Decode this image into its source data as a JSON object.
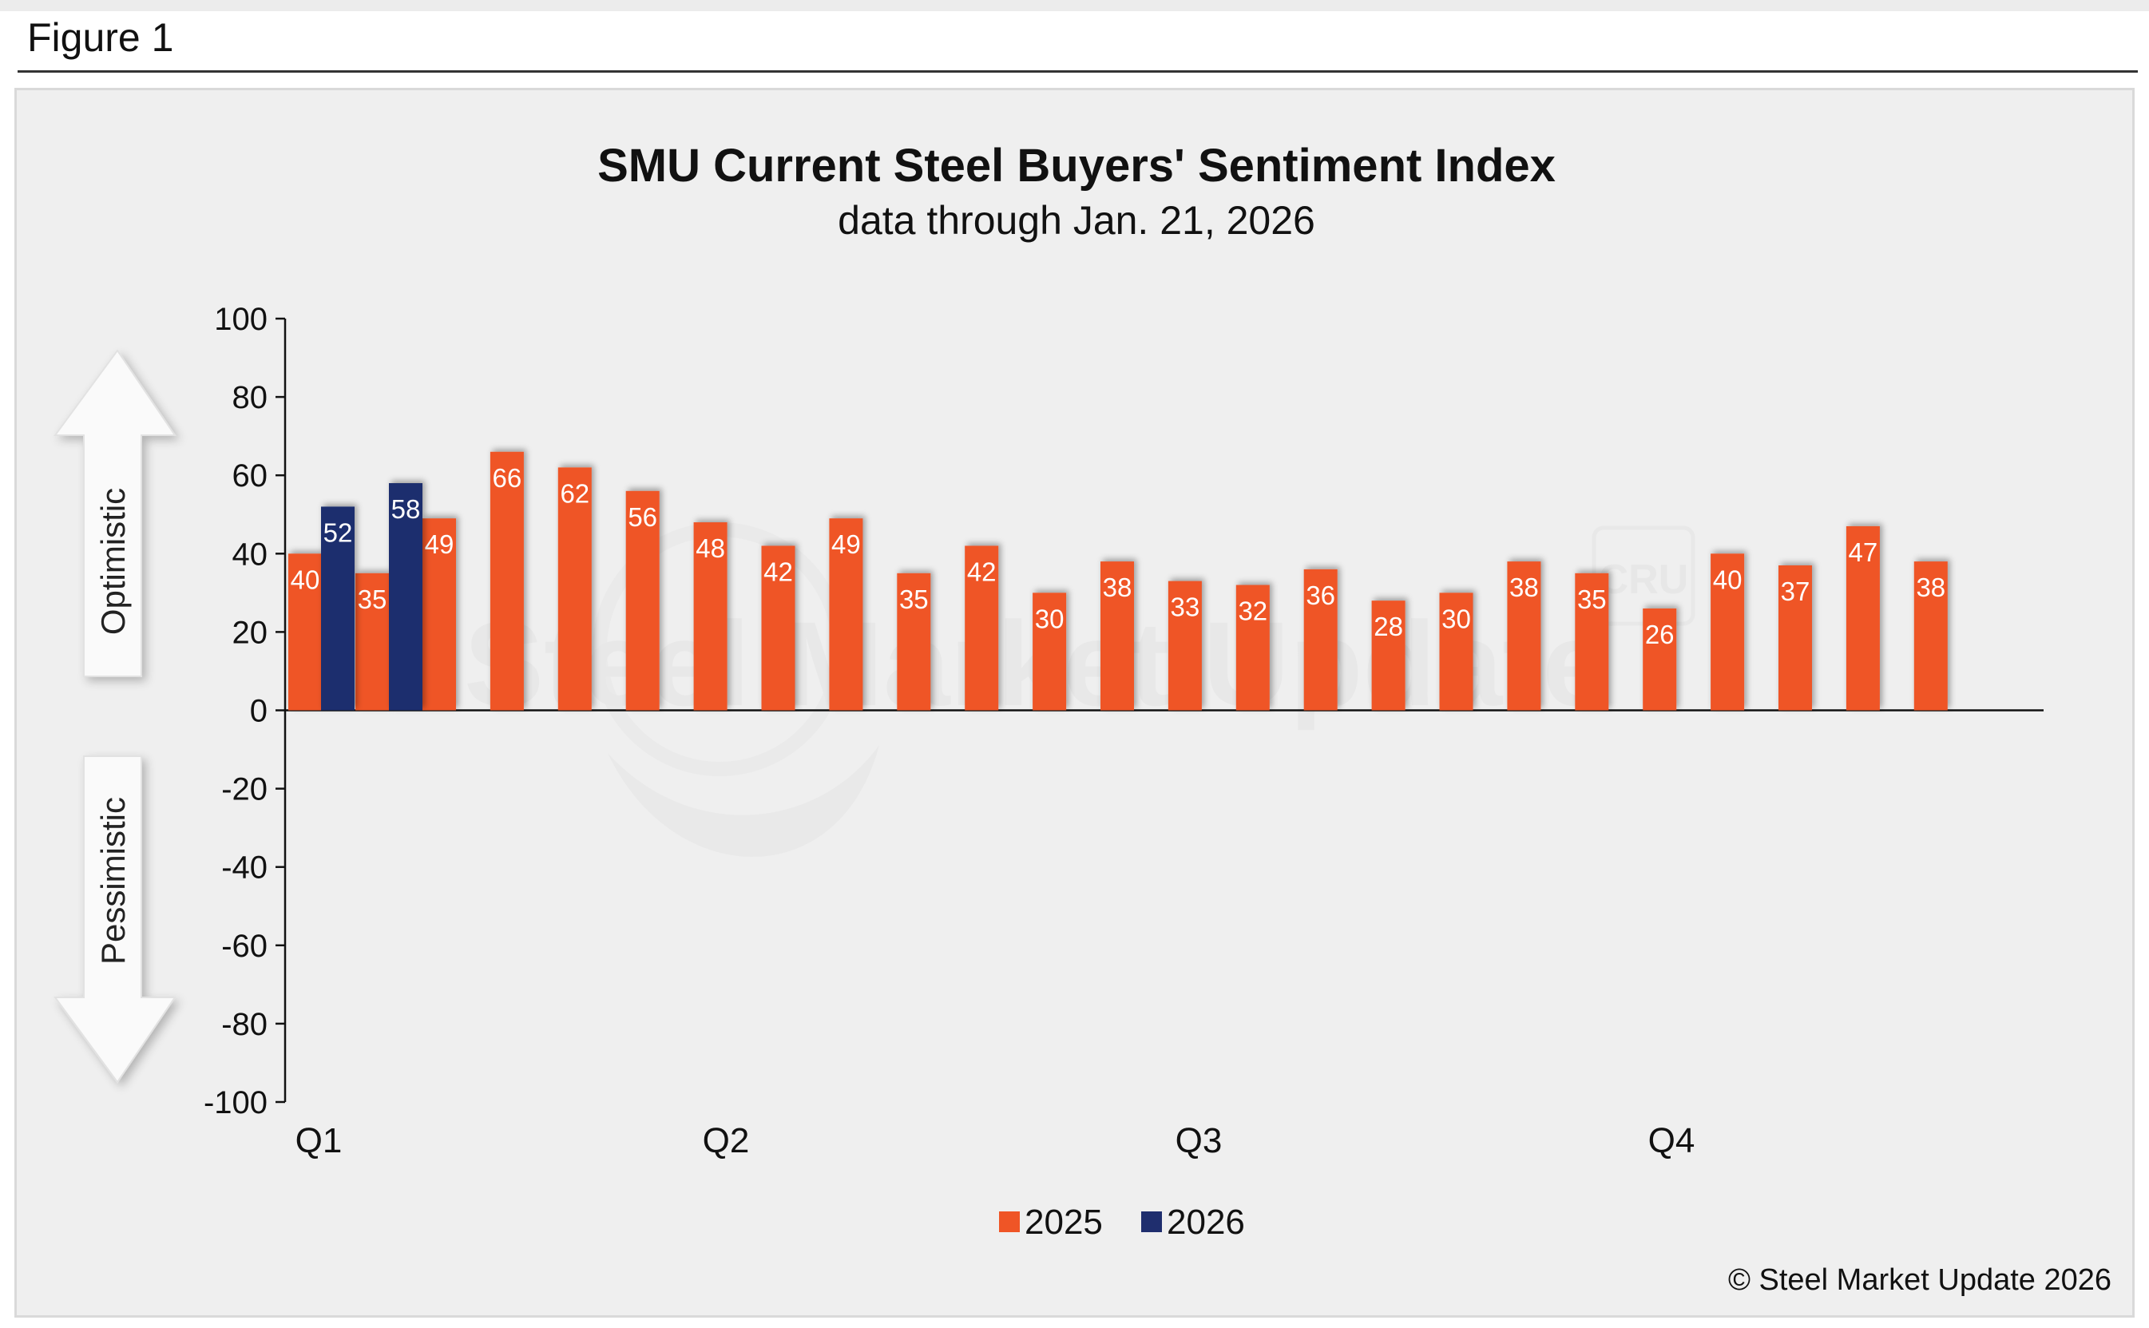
{
  "figure_label": "Figure 1",
  "copyright": "© Steel Market Update 2026",
  "watermark_text": "Steel Market Update",
  "watermark_logo_text": "CRU",
  "arrows": {
    "up_label": "Optimistic",
    "down_label": "Pessimistic"
  },
  "colors": {
    "series_2025": "#ef5526",
    "series_2026": "#1f2e6e",
    "panel_background": "#efefef"
  },
  "chart_data": {
    "type": "bar",
    "title": "SMU Current Steel Buyers' Sentiment Index",
    "subtitle": "data through Jan. 21, 2026",
    "xlabel": "",
    "ylabel": "",
    "ylim": [
      -100,
      100
    ],
    "yticks": [
      100,
      80,
      60,
      40,
      20,
      0,
      -20,
      -40,
      -60,
      -80,
      -100
    ],
    "quarter_labels": [
      "Q1",
      "Q2",
      "Q3",
      "Q4"
    ],
    "legend_position": "bottom",
    "grid": false,
    "series": [
      {
        "name": "2025",
        "color": "#ef5526",
        "values": [
          40,
          35,
          49,
          66,
          62,
          56,
          48,
          42,
          49,
          35,
          42,
          30,
          38,
          33,
          32,
          36,
          28,
          30,
          38,
          35,
          26,
          40,
          37,
          47,
          38
        ]
      },
      {
        "name": "2026",
        "color": "#1f2e6e",
        "values": [
          52,
          58
        ]
      }
    ]
  }
}
